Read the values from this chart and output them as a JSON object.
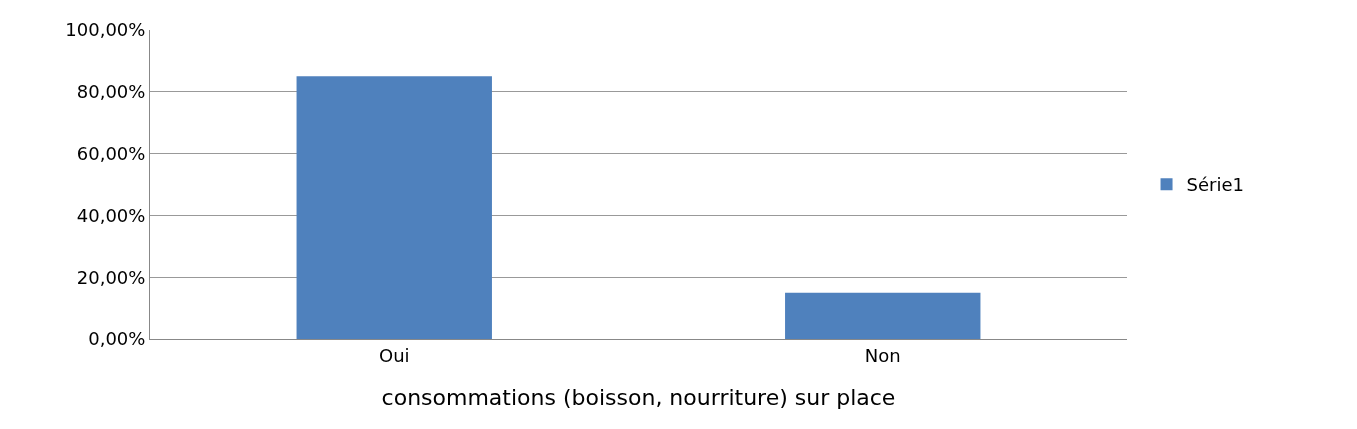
{
  "chart_data": {
    "type": "bar",
    "xlabel": "consommations (boisson, nourriture) sur place",
    "categories": [
      "Oui",
      "Non"
    ],
    "series": [
      {
        "name": "Série1",
        "color": "#4f81bd",
        "values": [
          0.85,
          0.15
        ]
      }
    ],
    "ylim": [
      0,
      1
    ],
    "yticks": [
      {
        "value": 0,
        "label": "0,00%"
      },
      {
        "value": 0.2,
        "label": "20,00%"
      },
      {
        "value": 0.4,
        "label": "40,00%"
      },
      {
        "value": 0.6,
        "label": "60,00%"
      },
      {
        "value": 0.8,
        "label": "80,00%"
      },
      {
        "value": 1,
        "label": "100,00%"
      }
    ],
    "grid": "y",
    "legend": "right"
  }
}
